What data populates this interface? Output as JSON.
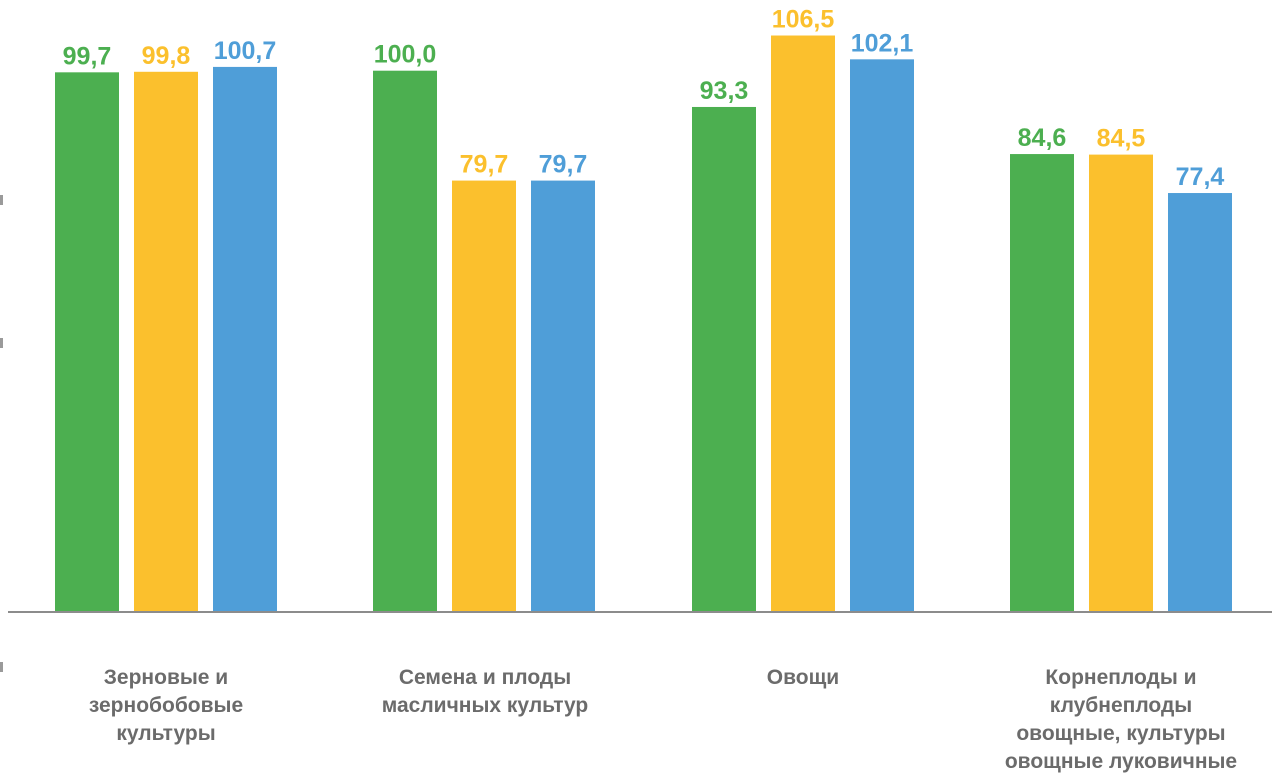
{
  "chart_data": {
    "type": "bar",
    "categories": [
      [
        "Зерновые и",
        "зернобобовые",
        "культуры"
      ],
      [
        "Семена и плоды",
        "масличных культур"
      ],
      [
        "Овощи"
      ],
      [
        "Корнеплоды и",
        "клубнеплоды",
        "овощные, культуры",
        "овощные луковичные"
      ]
    ],
    "series": [
      {
        "color": "#4caf50",
        "values": [
          99.7,
          100.0,
          93.3,
          84.6
        ],
        "labels": [
          "99,7",
          "100,0",
          "93,3",
          "84,6"
        ]
      },
      {
        "color": "#fbc02d",
        "values": [
          99.8,
          79.7,
          106.5,
          84.5
        ],
        "labels": [
          "99,8",
          "79,7",
          "106,5",
          "84,5"
        ]
      },
      {
        "color": "#4f9ed8",
        "values": [
          100.7,
          79.7,
          102.1,
          77.4
        ],
        "labels": [
          "100,7",
          "79,7",
          "102,1",
          "77,4"
        ]
      }
    ],
    "ylim": [
      0,
      110
    ],
    "grid": false,
    "legend": "none",
    "axis_color": "#8c8c8c",
    "label_color": "#6b6b6b"
  }
}
